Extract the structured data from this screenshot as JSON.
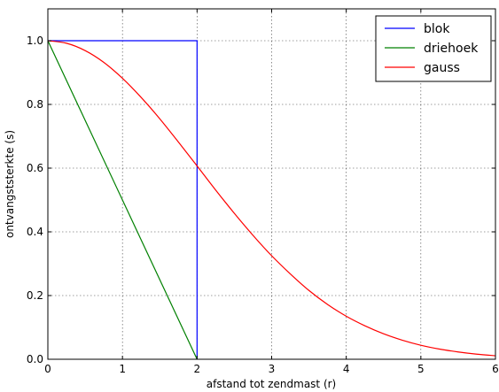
{
  "chart_data": {
    "type": "line",
    "title": "",
    "xlabel": "afstand tot zendmast (r)",
    "ylabel": "ontvangststerkte (s)",
    "xlim": [
      0,
      6
    ],
    "ylim": [
      0,
      1.1
    ],
    "xticks": [
      0,
      1,
      2,
      3,
      4,
      5,
      6
    ],
    "xtick_labels": [
      "0",
      "1",
      "2",
      "3",
      "4",
      "5",
      "6"
    ],
    "yticks": [
      0.0,
      0.2,
      0.4,
      0.6,
      0.8,
      1.0
    ],
    "ytick_labels": [
      "0.0",
      "0.2",
      "0.4",
      "0.6",
      "0.8",
      "1.0"
    ],
    "grid": true,
    "legend_position": "top-right",
    "series": [
      {
        "name": "blok",
        "color": "#0000ff",
        "x": [
          0,
          2,
          2
        ],
        "y": [
          1.0,
          1.0,
          0.0
        ]
      },
      {
        "name": "driehoek",
        "color": "#008000",
        "x": [
          0,
          2
        ],
        "y": [
          1.0,
          0.0
        ]
      },
      {
        "name": "gauss",
        "color": "#ff0000",
        "x": [
          0,
          0.25,
          0.5,
          0.75,
          1.0,
          1.25,
          1.5,
          1.75,
          2.0,
          2.25,
          2.5,
          2.75,
          3.0,
          3.25,
          3.5,
          3.75,
          4.0,
          4.25,
          4.5,
          4.75,
          5.0,
          5.25,
          5.5,
          5.75,
          6.0
        ],
        "y": [
          1.0,
          0.992,
          0.969,
          0.932,
          0.882,
          0.822,
          0.755,
          0.682,
          0.607,
          0.531,
          0.458,
          0.389,
          0.325,
          0.268,
          0.216,
          0.172,
          0.135,
          0.105,
          0.08,
          0.06,
          0.044,
          0.032,
          0.023,
          0.016,
          0.011
        ]
      }
    ]
  }
}
